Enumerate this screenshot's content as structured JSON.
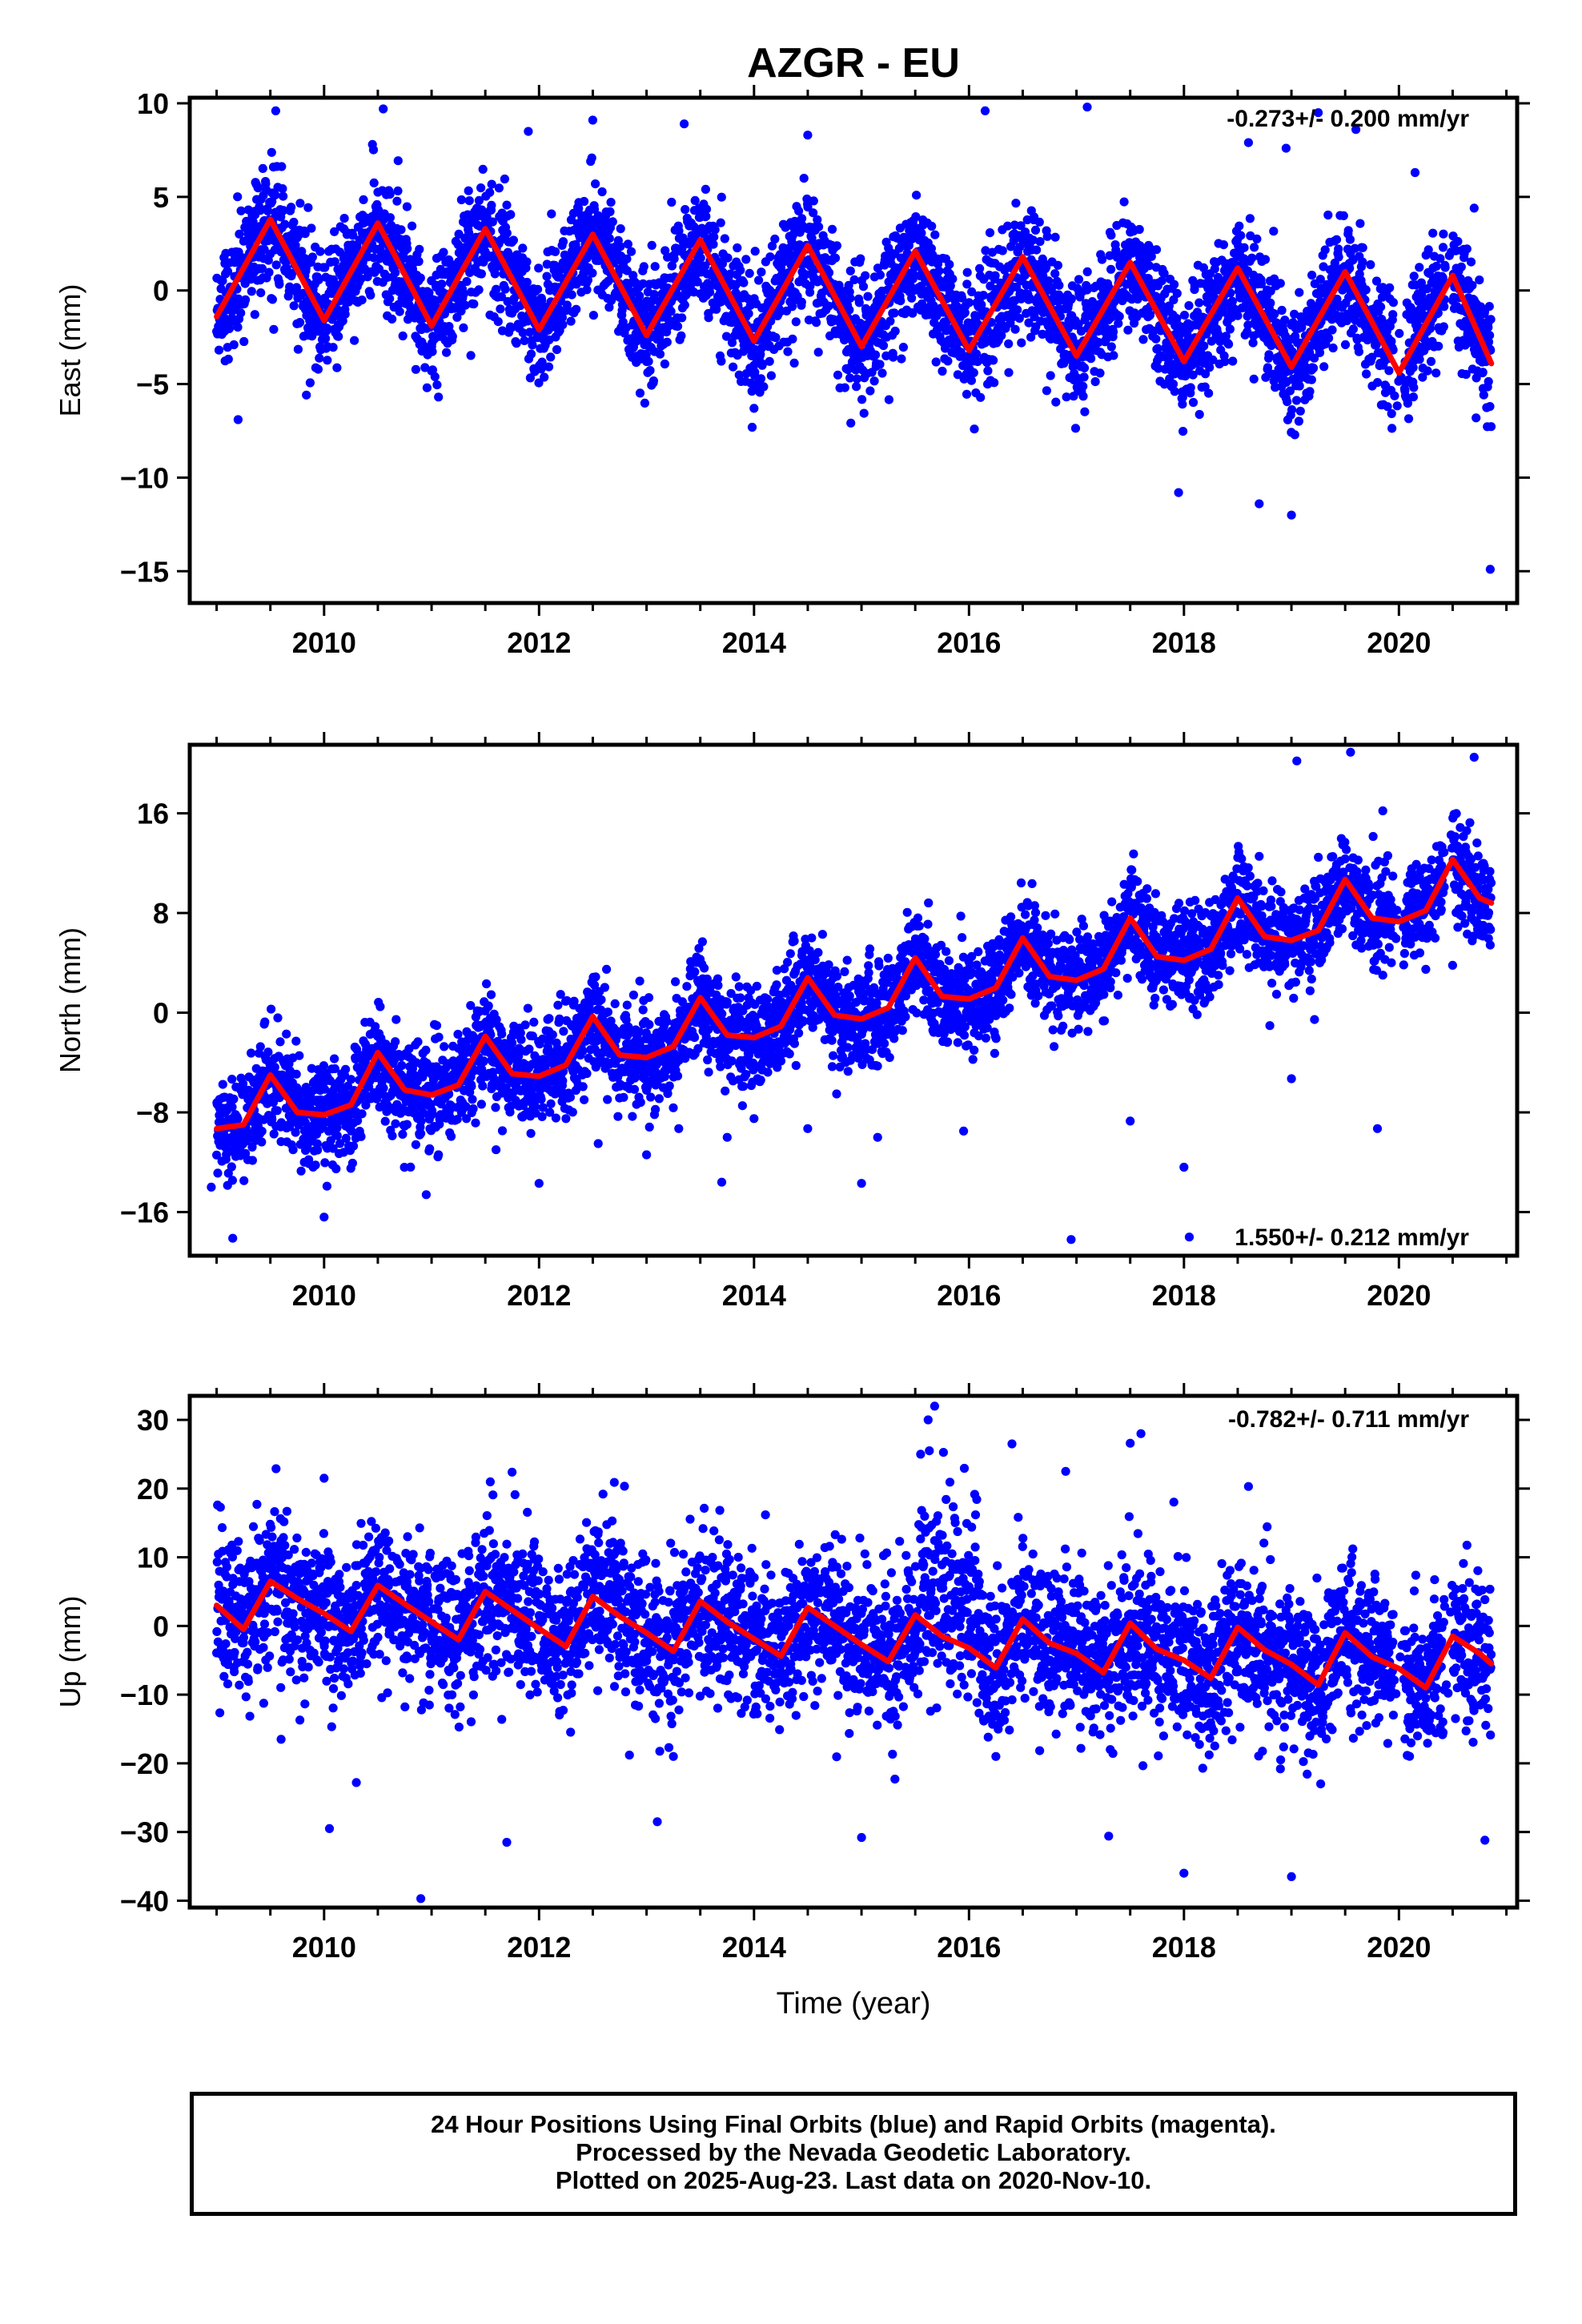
{
  "title": "AZGR - EU",
  "xlabel": "Time (year)",
  "colors": {
    "final_orbits": "#0000ff",
    "fit": "#ff0000",
    "frame": "#000000"
  },
  "footer": {
    "line1": "24 Hour Positions Using Final Orbits (blue) and Rapid Orbits (magenta).",
    "line2": "Processed by the Nevada Geodetic Laboratory.",
    "line3": "Plotted on 2025-Aug-23. Last data on 2020-Nov-10."
  },
  "chart_data": [
    {
      "type": "scatter",
      "ylabel": "East (mm)",
      "rate_label": "-0.273+/- 0.200 mm/yr",
      "xlim": [
        2008.75,
        2021.1
      ],
      "ylim": [
        -16.7,
        10.3
      ],
      "xticks": [
        2010,
        2012,
        2014,
        2016,
        2018,
        2020
      ],
      "yticks": [
        -15,
        -10,
        -5,
        0,
        5,
        10
      ],
      "grid": false,
      "series": [
        {
          "kind": "scatter",
          "color": "#0000ff"
        },
        {
          "kind": "line",
          "color": "#ff0000",
          "x": [
            2009.0,
            2009.5,
            2010.0,
            2010.5,
            2011.0,
            2011.5,
            2012.0,
            2012.5,
            2013.0,
            2013.5,
            2014.0,
            2014.5,
            2015.0,
            2015.5,
            2016.0,
            2016.5,
            2017.0,
            2017.5,
            2018.0,
            2018.5,
            2019.0,
            2019.5,
            2020.0,
            2020.5,
            2020.86
          ],
          "y": [
            -1.4,
            3.8,
            -1.6,
            3.6,
            -1.9,
            3.3,
            -2.1,
            3.0,
            -2.4,
            2.7,
            -2.7,
            2.4,
            -3.0,
            2.1,
            -3.2,
            1.8,
            -3.5,
            1.5,
            -3.8,
            1.2,
            -4.1,
            1.0,
            -4.4,
            0.8,
            -3.9
          ]
        }
      ],
      "outliers": {
        "x": [
          2009.55,
          2010.45,
          2010.55,
          2011.9,
          2012.5,
          2013.35,
          2014.5,
          2016.15,
          2017.1,
          2018.6,
          2018.95,
          2019.25,
          2019.6,
          2020.15,
          2020.7,
          2009.2,
          2011.0,
          2014.0,
          2016.05,
          2017.95,
          2018.7,
          2019.0,
          2020.85
        ],
        "y": [
          9.6,
          7.8,
          9.7,
          8.5,
          9.1,
          8.9,
          8.3,
          9.6,
          9.8,
          7.9,
          7.6,
          9.5,
          8.6,
          6.3,
          4.4,
          -6.9,
          -4.3,
          -6.3,
          -7.4,
          -10.8,
          -11.4,
          -12.0,
          -14.9
        ]
      }
    },
    {
      "type": "scatter",
      "ylabel": "North (mm)",
      "rate_label": "1.550+/- 0.212 mm/yr",
      "xlim": [
        2008.75,
        2021.1
      ],
      "ylim": [
        -19.5,
        21.5
      ],
      "xticks": [
        2010,
        2012,
        2014,
        2016,
        2018,
        2020
      ],
      "yticks": [
        -16,
        -8,
        0,
        8,
        16
      ],
      "grid": false,
      "series": [
        {
          "kind": "scatter",
          "color": "#0000ff"
        },
        {
          "kind": "line",
          "color": "#ff0000",
          "x": [
            2009.0,
            2009.25,
            2009.5,
            2009.75,
            2010.0,
            2010.25,
            2010.5,
            2010.75,
            2011.0,
            2011.25,
            2011.5,
            2011.75,
            2012.0,
            2012.25,
            2012.5,
            2012.75,
            2013.0,
            2013.25,
            2013.5,
            2013.75,
            2014.0,
            2014.25,
            2014.5,
            2014.75,
            2015.0,
            2015.25,
            2015.5,
            2015.75,
            2016.0,
            2016.25,
            2016.5,
            2016.75,
            2017.0,
            2017.25,
            2017.5,
            2017.75,
            2018.0,
            2018.25,
            2018.5,
            2018.75,
            2019.0,
            2019.25,
            2019.5,
            2019.75,
            2020.0,
            2020.25,
            2020.5,
            2020.75,
            2020.86
          ],
          "y": [
            -9.3,
            -9.0,
            -5.0,
            -8.0,
            -8.2,
            -7.4,
            -3.2,
            -6.2,
            -6.6,
            -5.8,
            -1.9,
            -4.9,
            -5.1,
            -4.2,
            -0.3,
            -3.4,
            -3.6,
            -2.7,
            1.2,
            -1.8,
            -2.0,
            -1.1,
            2.8,
            -0.2,
            -0.5,
            0.4,
            4.4,
            1.3,
            1.1,
            2.0,
            6.0,
            2.9,
            2.6,
            3.5,
            7.6,
            4.5,
            4.2,
            5.1,
            9.2,
            6.1,
            5.8,
            6.6,
            10.7,
            7.6,
            7.3,
            8.2,
            12.3,
            9.2,
            8.8
          ]
        }
      ],
      "outliers": {
        "x": [
          2008.95,
          2009.15,
          2010.0,
          2010.95,
          2011.6,
          2012.0,
          2012.1,
          2012.55,
          2013.0,
          2013.3,
          2013.75,
          2013.7,
          2014.0,
          2014.5,
          2015.0,
          2015.15,
          2015.95,
          2016.95,
          2017.5,
          2018.0,
          2018.05,
          2019.0,
          2019.05,
          2019.55,
          2019.85,
          2019.8,
          2020.7,
          2020.5
        ],
        "y": [
          -14.0,
          -18.1,
          -16.4,
          -14.6,
          -11.0,
          -13.7,
          -8.0,
          -10.5,
          -11.4,
          -9.3,
          -10.0,
          -13.6,
          -8.5,
          -9.3,
          -13.7,
          -10.0,
          -9.5,
          -18.2,
          -8.7,
          -12.4,
          -18.0,
          -5.3,
          20.2,
          20.9,
          16.2,
          -9.3,
          20.5,
          3.8
        ]
      }
    },
    {
      "type": "scatter",
      "ylabel": "Up (mm)",
      "rate_label": "-0.782+/- 0.711 mm/yr",
      "xlim": [
        2008.75,
        2021.1
      ],
      "ylim": [
        -41.0,
        33.5
      ],
      "xticks": [
        2010,
        2012,
        2014,
        2016,
        2018,
        2020
      ],
      "yticks": [
        -40,
        -30,
        -20,
        -10,
        0,
        10,
        20,
        30
      ],
      "grid": false,
      "series": [
        {
          "kind": "scatter",
          "color": "#0000ff"
        },
        {
          "kind": "line",
          "color": "#ff0000",
          "x": [
            2009.0,
            2009.25,
            2009.5,
            2009.75,
            2010.0,
            2010.25,
            2010.5,
            2010.75,
            2011.0,
            2011.25,
            2011.5,
            2011.75,
            2012.0,
            2012.25,
            2012.5,
            2012.75,
            2013.0,
            2013.25,
            2013.5,
            2013.75,
            2014.0,
            2014.25,
            2014.5,
            2014.75,
            2015.0,
            2015.25,
            2015.5,
            2015.75,
            2016.0,
            2016.25,
            2016.5,
            2016.75,
            2017.0,
            2017.25,
            2017.5,
            2017.75,
            2018.0,
            2018.25,
            2018.5,
            2018.75,
            2019.0,
            2019.25,
            2019.5,
            2019.75,
            2020.0,
            2020.25,
            2020.5,
            2020.75,
            2020.86
          ],
          "y": [
            3.0,
            -0.5,
            6.5,
            4.0,
            1.8,
            -0.8,
            5.9,
            3.2,
            0.6,
            -2.0,
            5.0,
            2.3,
            -0.4,
            -3.0,
            4.3,
            1.4,
            -1.0,
            -3.7,
            3.6,
            0.6,
            -1.9,
            -4.4,
            2.7,
            0.0,
            -2.7,
            -5.2,
            1.6,
            -1.5,
            -3.2,
            -6.1,
            1.0,
            -2.5,
            -4.0,
            -6.8,
            0.4,
            -3.4,
            -5.0,
            -7.6,
            -0.2,
            -3.5,
            -5.6,
            -8.6,
            -1.0,
            -4.5,
            -6.2,
            -9.0,
            -1.5,
            -4.0,
            -5.5
          ]
        }
      ],
      "outliers": {
        "x": [
          2010.0,
          2010.05,
          2010.3,
          2010.9,
          2011.7,
          2012.7,
          2013.1,
          2013.25,
          2015.0,
          2015.55,
          2015.62,
          2015.68,
          2016.4,
          2016.9,
          2017.3,
          2017.5,
          2017.6,
          2018.0,
          2018.6,
          2019.0,
          2019.7,
          2020.8,
          2009.6,
          2018.9
        ],
        "y": [
          21.5,
          -29.5,
          -22.8,
          -39.7,
          -31.5,
          20.9,
          -28.5,
          -19.0,
          -30.8,
          25.0,
          30.0,
          32.0,
          26.5,
          22.5,
          -30.6,
          26.6,
          28.0,
          -36.0,
          20.3,
          -36.5,
          -14.5,
          -31.2,
          -16.5,
          -19.5
        ]
      }
    }
  ]
}
